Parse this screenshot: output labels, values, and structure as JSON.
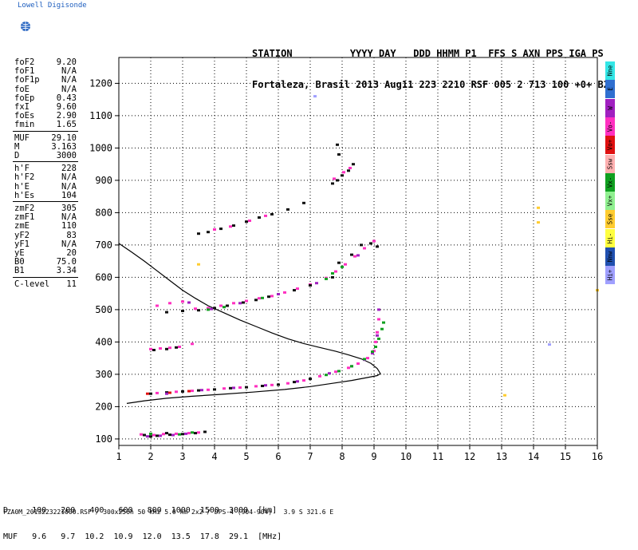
{
  "brand": {
    "name": "Lowell Digisonde"
  },
  "header": {
    "line1": "STATION          YYYY DAY   DDD HHMM P1  FFS S AXN PPS IGA PS",
    "line2": "Fortaleza, Brasil 2013 Aug11 223 2210 RSF 005 2 713 100 +0+ B2"
  },
  "params": {
    "group1": [
      {
        "label": "foF2",
        "value": "9.20"
      },
      {
        "label": "foF1",
        "value": "N/A"
      },
      {
        "label": "foF1p",
        "value": "N/A"
      },
      {
        "label": "foE",
        "value": "N/A"
      },
      {
        "label": "foEp",
        "value": "0.43"
      },
      {
        "label": "fxI",
        "value": "9.60"
      },
      {
        "label": "foEs",
        "value": "2.90"
      },
      {
        "label": "fmin",
        "value": "1.65"
      }
    ],
    "group2": [
      {
        "label": "MUF",
        "value": "29.10"
      },
      {
        "label": "M",
        "value": "3.163"
      },
      {
        "label": "D",
        "value": "3000"
      }
    ],
    "group3": [
      {
        "label": "h'F",
        "value": "228"
      },
      {
        "label": "h'F2",
        "value": "N/A"
      },
      {
        "label": "h'E",
        "value": "N/A"
      },
      {
        "label": "h'Es",
        "value": "104"
      }
    ],
    "group4": [
      {
        "label": "zmF2",
        "value": "305"
      },
      {
        "label": "zmF1",
        "value": "N/A"
      },
      {
        "label": "zmE",
        "value": "110"
      },
      {
        "label": "yF2",
        "value": "83"
      },
      {
        "label": "yF1",
        "value": "N/A"
      },
      {
        "label": "yE",
        "value": "20"
      },
      {
        "label": "B0",
        "value": "75.0"
      },
      {
        "label": "B1",
        "value": "3.34"
      }
    ],
    "group5": [
      {
        "label": "C-level",
        "value": "11"
      }
    ]
  },
  "legend": [
    {
      "label": "Nne",
      "color": "#33e6e6"
    },
    {
      "label": "E",
      "color": "#2f6fd0"
    },
    {
      "label": "W",
      "color": "#a020c0"
    },
    {
      "label": "Vo-",
      "color": "#ff30c0"
    },
    {
      "label": "Vo+",
      "color": "#e01010"
    },
    {
      "label": "Ssw",
      "color": "#ffb0b0"
    },
    {
      "label": "Vx-",
      "color": "#10a020"
    },
    {
      "label": "Vx+",
      "color": "#90f090"
    },
    {
      "label": "Sse",
      "color": "#ffcc30"
    },
    {
      "label": "Hi-",
      "color": "#ffff40"
    },
    {
      "label": "Nnw",
      "color": "#2050b0"
    },
    {
      "label": "Hi+",
      "color": "#a0a0ff"
    }
  ],
  "muf_table": {
    "row_d": "D     100   200   400   600   800  1000  1500  3000  [km]",
    "row_muf": "MUF   9.6   9.7  10.2  10.9  12.0  13.5  17.8  29.1  [MHz]"
  },
  "footer": {
    "text": "FZA0M_2013223221000.RSF / 300x256h 50 kHz 5.0 km 2x2 / DPS-4 (904-904)   3.9 S 321.6 E"
  },
  "chart_data": {
    "type": "scatter",
    "xlim": [
      1,
      16
    ],
    "ylim": [
      80,
      1280
    ],
    "xticks": [
      1,
      2,
      3,
      4,
      5,
      6,
      7,
      8,
      9,
      10,
      11,
      12,
      13,
      14,
      15,
      16
    ],
    "yticks": [
      100,
      200,
      300,
      400,
      500,
      600,
      700,
      800,
      900,
      1000,
      1100,
      1200
    ],
    "grid": true,
    "series": [
      {
        "color": "#101010",
        "points": [
          [
            1.8,
            112
          ],
          [
            2.2,
            110
          ],
          [
            2.6,
            113
          ],
          [
            3.0,
            115
          ],
          [
            3.4,
            118
          ],
          [
            3.7,
            122
          ],
          [
            2.5,
            118
          ],
          [
            2.0,
            108
          ]
        ]
      },
      {
        "color": "#ff30c0",
        "points": [
          [
            1.7,
            114
          ],
          [
            2.1,
            112
          ],
          [
            2.4,
            115
          ],
          [
            2.8,
            116
          ],
          [
            3.2,
            118
          ],
          [
            3.5,
            120
          ]
        ]
      },
      {
        "color": "#a020c0",
        "points": [
          [
            1.9,
            108
          ],
          [
            2.3,
            110
          ],
          [
            2.7,
            112
          ],
          [
            3.1,
            116
          ]
        ]
      },
      {
        "color": "#10a020",
        "points": [
          [
            2.0,
            116
          ],
          [
            2.9,
            114
          ],
          [
            3.3,
            120
          ]
        ]
      },
      {
        "color": "#101010",
        "points": [
          [
            2.0,
            240
          ],
          [
            2.5,
            244
          ],
          [
            3.0,
            247
          ],
          [
            3.5,
            250
          ],
          [
            4.0,
            253
          ],
          [
            4.5,
            257
          ],
          [
            5.0,
            260
          ],
          [
            5.5,
            264
          ],
          [
            6.0,
            268
          ],
          [
            6.5,
            276
          ],
          [
            7.0,
            286
          ]
        ]
      },
      {
        "color": "#ff30c0",
        "points": [
          [
            2.2,
            242
          ],
          [
            2.8,
            246
          ],
          [
            3.3,
            249
          ],
          [
            3.8,
            252
          ],
          [
            4.3,
            256
          ],
          [
            4.8,
            259
          ],
          [
            5.3,
            263
          ],
          [
            5.8,
            267
          ],
          [
            6.3,
            272
          ],
          [
            6.8,
            281
          ],
          [
            7.3,
            294
          ],
          [
            7.8,
            308
          ],
          [
            8.2,
            320
          ],
          [
            8.5,
            333
          ],
          [
            8.8,
            350
          ],
          [
            9.0,
            372
          ],
          [
            9.05,
            400
          ],
          [
            9.1,
            430
          ],
          [
            9.15,
            470
          ]
        ]
      },
      {
        "color": "#a020c0",
        "points": [
          [
            2.5,
            240
          ],
          [
            3.6,
            251
          ],
          [
            4.6,
            258
          ],
          [
            5.6,
            266
          ],
          [
            6.6,
            278
          ],
          [
            7.6,
            303
          ],
          [
            8.3,
            325
          ],
          [
            8.7,
            345
          ],
          [
            8.95,
            365
          ],
          [
            9.1,
            420
          ],
          [
            9.15,
            500
          ]
        ]
      },
      {
        "color": "#10a020",
        "points": [
          [
            7.5,
            298
          ],
          [
            7.9,
            310
          ],
          [
            8.3,
            325
          ],
          [
            8.7,
            347
          ],
          [
            8.95,
            370
          ],
          [
            9.05,
            385
          ],
          [
            9.15,
            410
          ],
          [
            9.25,
            440
          ],
          [
            9.3,
            460
          ]
        ]
      },
      {
        "color": "#e01010",
        "points": [
          [
            1.9,
            240
          ],
          [
            2.6,
            243
          ],
          [
            3.2,
            248
          ]
        ]
      },
      {
        "color": "#ff30c0",
        "points": [
          [
            2.0,
            378
          ],
          [
            2.3,
            380
          ],
          [
            2.6,
            382
          ],
          [
            2.9,
            385
          ],
          [
            3.3,
            394
          ]
        ]
      },
      {
        "color": "#101010",
        "points": [
          [
            2.1,
            375
          ],
          [
            2.5,
            378
          ],
          [
            2.8,
            383
          ]
        ]
      },
      {
        "color": "#ff30c0",
        "points": [
          [
            2.2,
            512
          ],
          [
            2.6,
            520
          ],
          [
            3.0,
            525
          ],
          [
            3.4,
            503
          ],
          [
            3.8,
            505
          ],
          [
            4.2,
            512
          ],
          [
            4.6,
            520
          ],
          [
            5.0,
            527
          ],
          [
            5.4,
            535
          ],
          [
            5.8,
            542
          ],
          [
            6.2,
            553
          ],
          [
            6.6,
            565
          ],
          [
            7.0,
            578
          ],
          [
            7.5,
            598
          ],
          [
            7.8,
            618
          ],
          [
            8.1,
            640
          ],
          [
            8.4,
            665
          ],
          [
            8.7,
            690
          ],
          [
            9.0,
            712
          ]
        ]
      },
      {
        "color": "#101010",
        "points": [
          [
            2.5,
            492
          ],
          [
            3.0,
            496
          ],
          [
            3.5,
            498
          ],
          [
            4.0,
            505
          ],
          [
            4.4,
            512
          ],
          [
            4.9,
            522
          ],
          [
            5.3,
            530
          ],
          [
            5.7,
            540
          ],
          [
            6.5,
            560
          ],
          [
            7.0,
            575
          ],
          [
            7.7,
            600
          ],
          [
            7.9,
            645
          ],
          [
            8.3,
            670
          ],
          [
            8.6,
            700
          ],
          [
            8.9,
            705
          ],
          [
            9.1,
            695
          ]
        ]
      },
      {
        "color": "#10a020",
        "points": [
          [
            3.8,
            500
          ],
          [
            4.3,
            508
          ],
          [
            5.5,
            536
          ],
          [
            7.5,
            595
          ],
          [
            7.7,
            612
          ],
          [
            8.0,
            632
          ]
        ]
      },
      {
        "color": "#a020c0",
        "points": [
          [
            3.2,
            522
          ],
          [
            3.9,
            502
          ],
          [
            4.8,
            520
          ],
          [
            6.0,
            548
          ],
          [
            7.2,
            582
          ],
          [
            8.5,
            668
          ]
        ]
      },
      {
        "color": "#101010",
        "points": [
          [
            3.5,
            735
          ],
          [
            3.8,
            740
          ],
          [
            4.2,
            750
          ],
          [
            4.6,
            760
          ],
          [
            5.0,
            772
          ],
          [
            5.4,
            785
          ],
          [
            5.8,
            795
          ],
          [
            6.3,
            810
          ],
          [
            6.8,
            830
          ]
        ]
      },
      {
        "color": "#ff30c0",
        "points": [
          [
            4.0,
            748
          ],
          [
            4.5,
            757
          ],
          [
            5.1,
            775
          ],
          [
            5.6,
            790
          ]
        ]
      },
      {
        "color": "#101010",
        "points": [
          [
            7.7,
            890
          ],
          [
            7.85,
            900
          ],
          [
            8.0,
            915
          ],
          [
            8.2,
            930
          ],
          [
            8.35,
            950
          ],
          [
            7.9,
            980
          ],
          [
            7.85,
            1010
          ]
        ]
      },
      {
        "color": "#ff30c0",
        "points": [
          [
            8.05,
            925
          ],
          [
            8.25,
            938
          ],
          [
            7.75,
            905
          ]
        ]
      },
      {
        "color": "#a0a0ff",
        "points": [
          [
            7.15,
            1160
          ],
          [
            14.5,
            392
          ]
        ]
      },
      {
        "color": "#ffcc30",
        "points": [
          [
            14.15,
            815
          ],
          [
            14.15,
            770
          ],
          [
            3.5,
            640
          ],
          [
            16.0,
            560
          ],
          [
            13.1,
            235
          ]
        ]
      }
    ],
    "curve": {
      "color": "#000000",
      "points": [
        [
          9.2,
          302
        ],
        [
          9.1,
          318
        ],
        [
          8.9,
          334
        ],
        [
          8.6,
          348
        ],
        [
          8.2,
          360
        ],
        [
          7.8,
          371
        ],
        [
          7.3,
          383
        ],
        [
          6.8,
          395
        ],
        [
          6.3,
          410
        ],
        [
          5.8,
          428
        ],
        [
          5.3,
          448
        ],
        [
          4.8,
          468
        ],
        [
          4.3,
          490
        ],
        [
          3.8,
          512
        ],
        [
          3.4,
          535
        ],
        [
          3.0,
          560
        ],
        [
          2.6,
          590
        ],
        [
          2.2,
          620
        ],
        [
          1.8,
          650
        ],
        [
          1.4,
          678
        ],
        [
          1.0,
          705
        ]
      ]
    },
    "curve_lower": {
      "color": "#000000",
      "points": [
        [
          1.25,
          210
        ],
        [
          1.8,
          218
        ],
        [
          2.5,
          226
        ],
        [
          3.3,
          232
        ],
        [
          4.2,
          238
        ],
        [
          5.2,
          245
        ],
        [
          6.2,
          253
        ],
        [
          7.0,
          262
        ],
        [
          7.7,
          272
        ],
        [
          8.3,
          281
        ],
        [
          8.8,
          290
        ],
        [
          9.1,
          296
        ],
        [
          9.2,
          302
        ]
      ]
    }
  }
}
